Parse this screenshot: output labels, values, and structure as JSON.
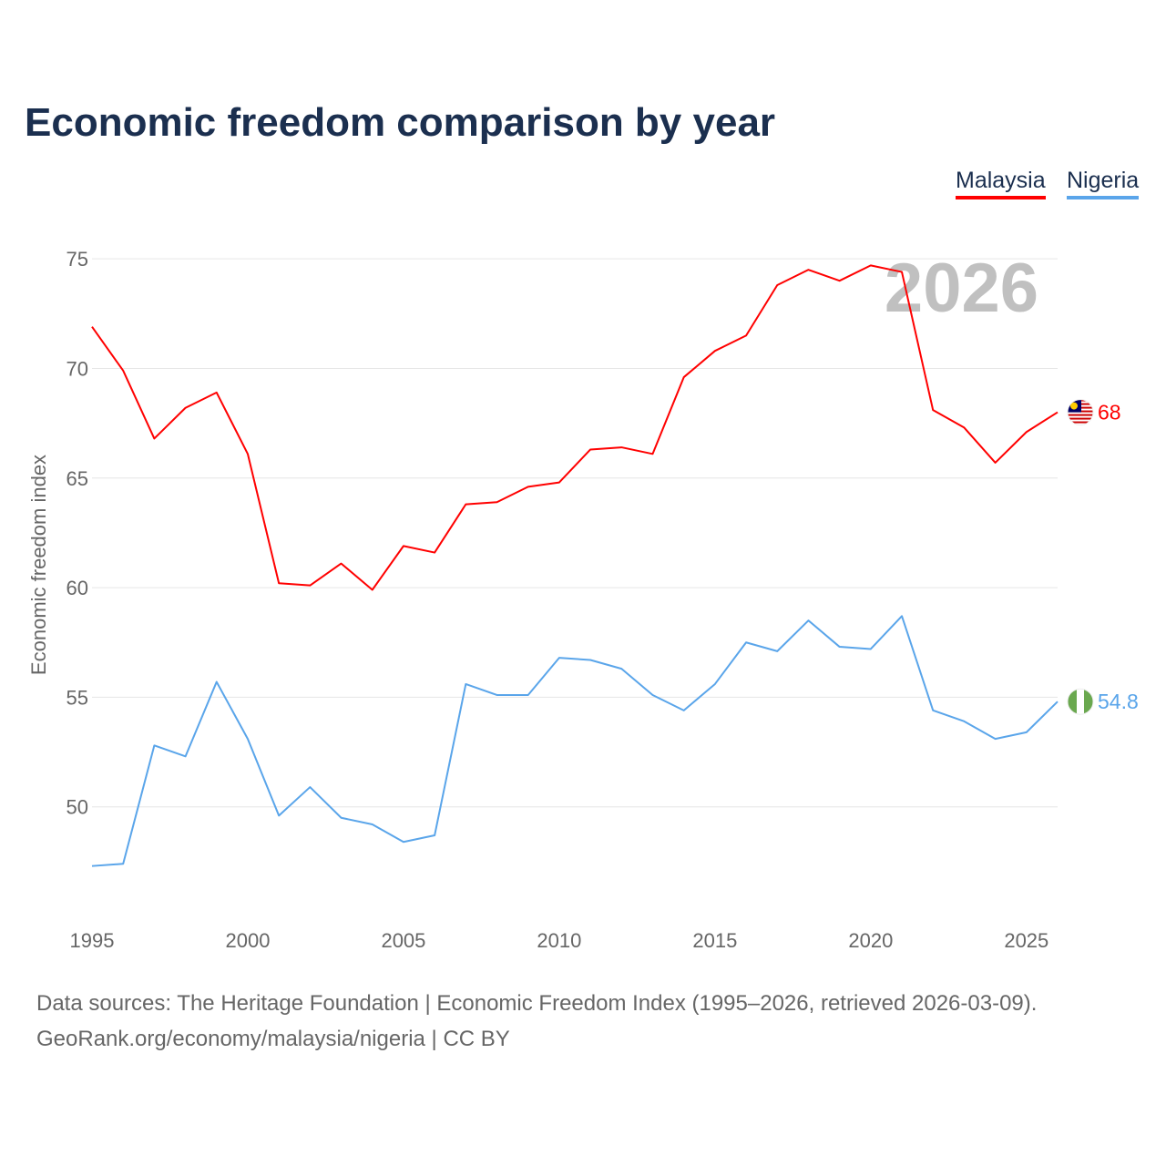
{
  "title": "Economic freedom comparison by year",
  "source_line1": "Data sources: The Heritage Foundation | Economic Freedom Index (1995–2026, retrieved 2026-03-09).",
  "source_line2": "GeoRank.org/economy/malaysia/nigeria | CC BY",
  "chart_data": {
    "type": "line",
    "title": "Economic freedom comparison by year",
    "xlabel": "",
    "ylabel": "Economic freedom index",
    "year_watermark": "2026",
    "xlim": [
      1995,
      2026
    ],
    "ylim": [
      45.5,
      77
    ],
    "yticks": [
      50,
      55,
      60,
      65,
      70,
      75
    ],
    "xticks": [
      1995,
      2000,
      2005,
      2010,
      2015,
      2020,
      2025
    ],
    "grid": true,
    "legend_position": "top-right",
    "x": [
      1995,
      1996,
      1997,
      1998,
      1999,
      2000,
      2001,
      2002,
      2003,
      2004,
      2005,
      2006,
      2007,
      2008,
      2009,
      2010,
      2011,
      2012,
      2013,
      2014,
      2015,
      2016,
      2017,
      2018,
      2019,
      2020,
      2021,
      2022,
      2023,
      2024,
      2025,
      2026
    ],
    "series": [
      {
        "name": "Malaysia",
        "color": "#ff0000",
        "end_label": "68",
        "flag": "malaysia-flag",
        "values": [
          71.9,
          69.9,
          66.8,
          68.2,
          68.9,
          66.1,
          60.2,
          60.1,
          61.1,
          59.9,
          61.9,
          61.6,
          63.8,
          63.9,
          64.6,
          64.8,
          66.3,
          66.4,
          66.1,
          69.6,
          70.8,
          71.5,
          73.8,
          74.5,
          74.0,
          74.7,
          74.4,
          68.1,
          67.3,
          65.7,
          67.1,
          68.0
        ]
      },
      {
        "name": "Nigeria",
        "color": "#5aa5ea",
        "end_label": "54.8",
        "flag": "nigeria-flag",
        "values": [
          47.3,
          47.4,
          52.8,
          52.3,
          55.7,
          53.1,
          49.6,
          50.9,
          49.5,
          49.2,
          48.4,
          48.7,
          55.6,
          55.1,
          55.1,
          56.8,
          56.7,
          56.3,
          55.1,
          54.4,
          55.6,
          57.5,
          57.1,
          58.5,
          57.3,
          57.2,
          58.7,
          54.4,
          53.9,
          53.1,
          53.4,
          54.8
        ]
      }
    ]
  }
}
